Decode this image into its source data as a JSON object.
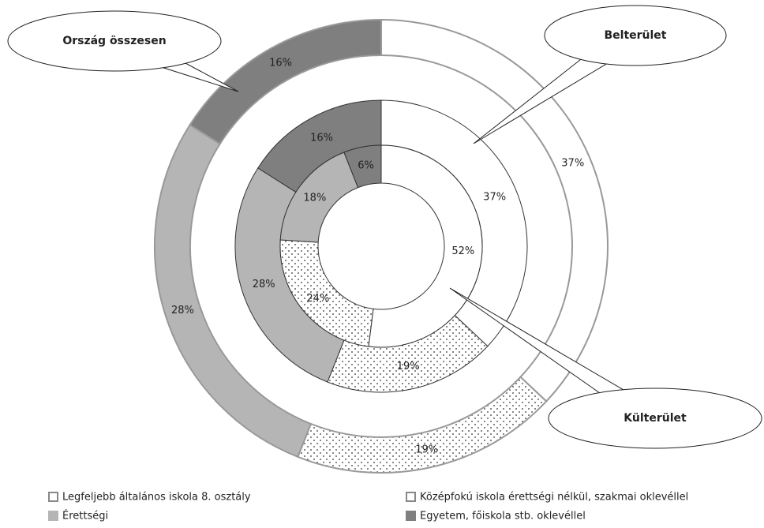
{
  "chart_data": {
    "type": "donut",
    "categories": [
      "Legfeljebb általános iskola 8. osztály",
      "Középfokú iskola érettségi nélkül, szakmai oklevéllel",
      "Érettségi",
      "Egyetem, főiskola stb. oklevéllel"
    ],
    "colors": [
      "#ffffff",
      "#ffffff",
      "#b5b5b5",
      "#7f7f7f"
    ],
    "dotted": [
      false,
      true,
      false,
      false
    ],
    "series": [
      {
        "name": "Ország összesen",
        "values": [
          37,
          19,
          28,
          16
        ],
        "value_labels": [
          "37%",
          "19%",
          "28%",
          "16%"
        ]
      },
      {
        "name": "Belterület",
        "values": [
          37,
          19,
          28,
          16
        ],
        "value_labels": [
          "37%",
          "19%",
          "28%",
          "16%"
        ]
      },
      {
        "name": "Külterület",
        "values": [
          52,
          24,
          18,
          6
        ],
        "value_labels": [
          "52%",
          "24%",
          "18%",
          "6%"
        ]
      }
    ]
  }
}
